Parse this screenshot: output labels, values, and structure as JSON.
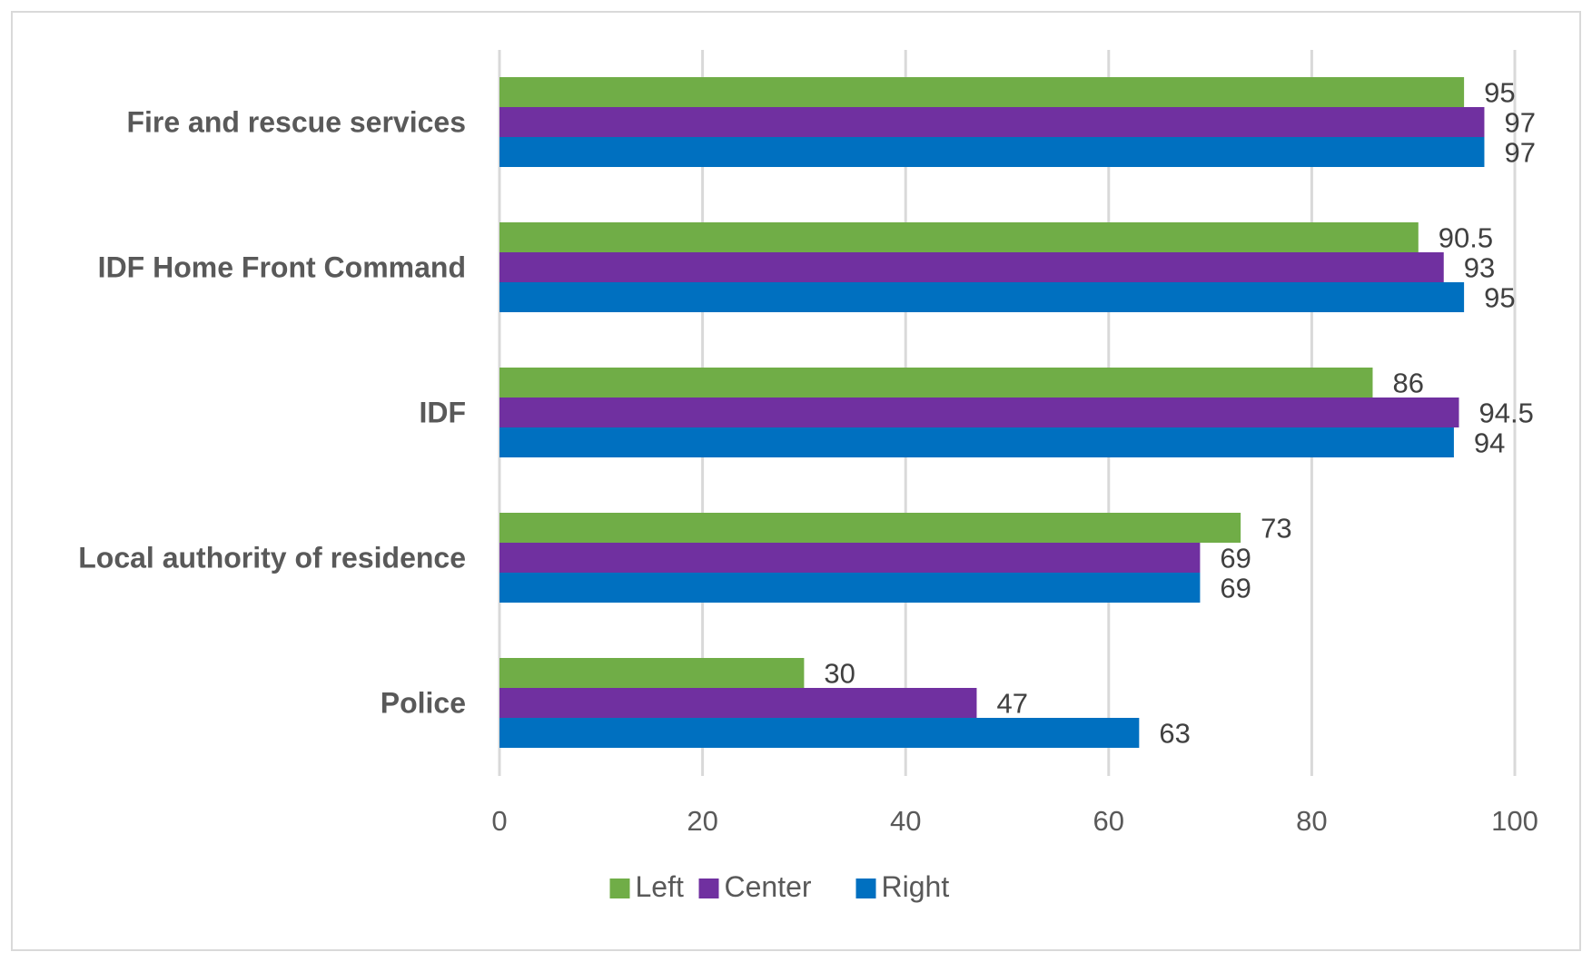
{
  "chart_data": {
    "type": "bar",
    "orientation": "horizontal",
    "categories": [
      "Fire and rescue services",
      "IDF Home Front Command",
      "IDF",
      "Local authority of residence",
      "Police"
    ],
    "series": [
      {
        "name": "Left",
        "color": "#70ad47",
        "values": [
          95,
          90.5,
          86,
          73,
          30
        ]
      },
      {
        "name": "Center",
        "color": "#7030a0",
        "values": [
          97,
          93,
          94.5,
          69,
          47
        ]
      },
      {
        "name": "Right",
        "color": "#0070c0",
        "values": [
          97,
          95,
          94,
          69,
          63
        ]
      }
    ],
    "xlim": [
      0,
      100
    ],
    "xticks": [
      0,
      20,
      40,
      60,
      80,
      100
    ],
    "grid": true,
    "legend": "bottom",
    "data_labels": true
  }
}
